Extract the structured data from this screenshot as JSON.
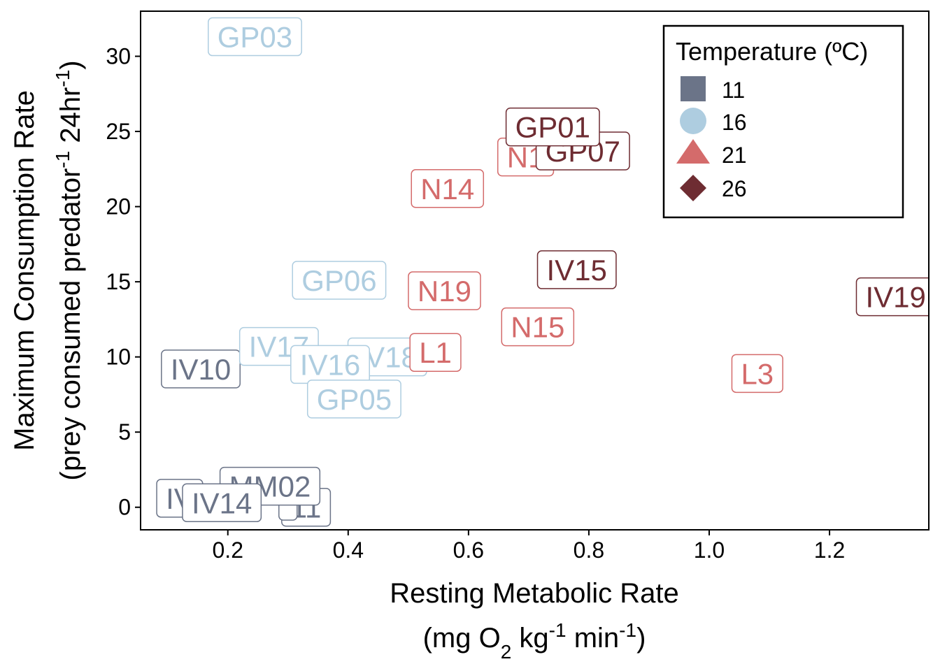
{
  "chart_data": {
    "type": "scatter",
    "xlabel": {
      "line1": "Resting Metabolic Rate",
      "line2": {
        "open": "(mg O",
        "sub": "2",
        "mid1": " kg",
        "sup1": "-1",
        "mid2": " min",
        "sup2": "-1",
        "close": ")"
      }
    },
    "ylabel": {
      "line1": "Maximum Consumption Rate",
      "line2": {
        "open": "(prey consumed predator",
        "sup1": "-1",
        "mid": " 24hr",
        "sup2": "-1",
        "close": ")"
      }
    },
    "xlim": [
      0.055,
      1.365
    ],
    "ylim": [
      -1.5,
      33.0
    ],
    "xticks": [
      0.2,
      0.4,
      0.6,
      0.8,
      1.0,
      1.2
    ],
    "xtick_labels": [
      "0.2",
      "0.4",
      "0.6",
      "0.8",
      "1.0",
      "1.2"
    ],
    "yticks": [
      0,
      5,
      10,
      15,
      20,
      25,
      30
    ],
    "ytick_labels": [
      "0",
      "5",
      "10",
      "15",
      "20",
      "25",
      "30"
    ],
    "grid": false,
    "legend": {
      "title": "Temperature (ºC)",
      "placement": "top-right",
      "entries": [
        {
          "label": "11",
          "shape": "square",
          "color": "#6b7488"
        },
        {
          "label": "16",
          "shape": "circle",
          "color": "#aecde0"
        },
        {
          "label": "21",
          "shape": "triangle",
          "color": "#d46b6b"
        },
        {
          "label": "26",
          "shape": "diamond",
          "color": "#6e2c32"
        }
      ]
    },
    "colors": {
      "11": "#6b7488",
      "16": "#aecde0",
      "21": "#d46b6b",
      "26": "#6e2c32"
    },
    "points": [
      {
        "label": "IV",
        "x": 0.12,
        "y": 0.6,
        "temp": "11"
      },
      {
        "label": "11",
        "x": 0.33,
        "y": 0.0,
        "temp": "11"
      },
      {
        "label": "",
        "x": 0.3,
        "y": 0.4,
        "temp": "11"
      },
      {
        "label": "MM02",
        "x": 0.27,
        "y": 1.4,
        "temp": "11"
      },
      {
        "label": "IV14",
        "x": 0.19,
        "y": 0.3,
        "temp": "11"
      },
      {
        "label": "IV10",
        "x": 0.155,
        "y": 9.2,
        "temp": "11"
      },
      {
        "label": "GP03",
        "x": 0.245,
        "y": 31.3,
        "temp": "16"
      },
      {
        "label": "GP06",
        "x": 0.385,
        "y": 15.1,
        "temp": "16"
      },
      {
        "label": "IV17",
        "x": 0.285,
        "y": 10.7,
        "temp": "16"
      },
      {
        "label": "IV18",
        "x": 0.465,
        "y": 10.0,
        "temp": "16"
      },
      {
        "label": "IV16",
        "x": 0.37,
        "y": 9.5,
        "temp": "16"
      },
      {
        "label": "GP05",
        "x": 0.41,
        "y": 7.2,
        "temp": "16"
      },
      {
        "label": "N1",
        "x": 0.695,
        "y": 23.3,
        "temp": "21"
      },
      {
        "label": "N14",
        "x": 0.565,
        "y": 21.2,
        "temp": "21"
      },
      {
        "label": "N19",
        "x": 0.56,
        "y": 14.4,
        "temp": "21"
      },
      {
        "label": "L1",
        "x": 0.545,
        "y": 10.3,
        "temp": "21"
      },
      {
        "label": "N15",
        "x": 0.715,
        "y": 12.0,
        "temp": "21"
      },
      {
        "label": "L3",
        "x": 1.08,
        "y": 8.9,
        "temp": "21"
      },
      {
        "label": "GP07",
        "x": 0.79,
        "y": 23.7,
        "temp": "26"
      },
      {
        "label": "GP01",
        "x": 0.74,
        "y": 25.3,
        "temp": "26"
      },
      {
        "label": "IV15",
        "x": 0.78,
        "y": 15.8,
        "temp": "26"
      },
      {
        "label": "IV19",
        "x": 1.31,
        "y": 14.0,
        "temp": "26"
      }
    ]
  }
}
